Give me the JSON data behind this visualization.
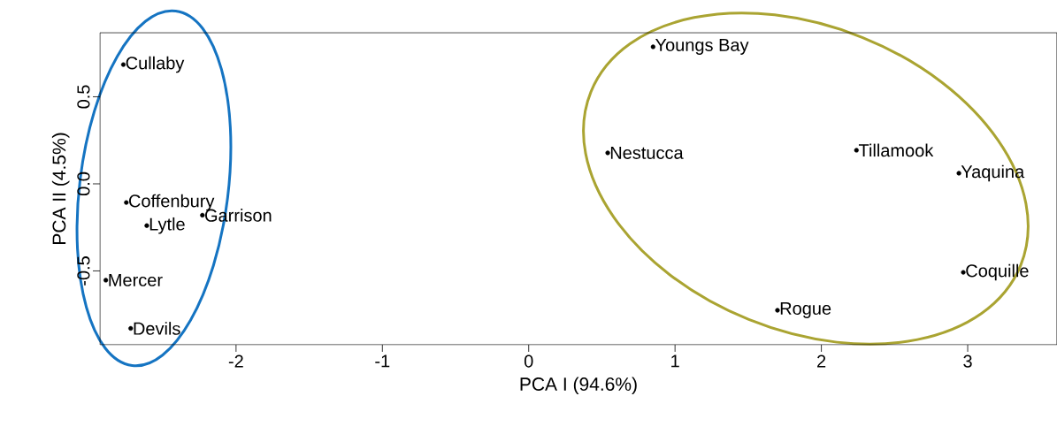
{
  "chart_data": {
    "type": "scatter",
    "xlabel": "PCA I (94.6%)",
    "ylabel": "PCA II (4.5%)",
    "x": [
      -2.77,
      -2.75,
      -2.61,
      -2.23,
      -2.89,
      -2.72,
      0.85,
      0.54,
      2.24,
      2.94,
      2.97,
      1.7
    ],
    "series": [
      {
        "color": "#000000",
        "values": [
          0.685,
          -0.107,
          -0.24,
          -0.18,
          -0.553,
          -0.83,
          0.787,
          0.178,
          0.193,
          0.061,
          -0.508,
          -0.726
        ]
      }
    ],
    "marker": "circle",
    "grid": false,
    "xlim": [
      -2.93,
      3.61
    ],
    "ylim": [
      -0.924,
      0.868
    ],
    "xticks": [
      -2,
      -1,
      0,
      1,
      2,
      3
    ],
    "yticks": [
      -0.5,
      {
        "value": 0,
        "label": "0.0"
      },
      0.5
    ],
    "annotations": [
      {
        "text": "Cullaby",
        "x": -2.77,
        "y": 0.685
      },
      {
        "text": "Coffenbury",
        "x": -2.75,
        "y": -0.107
      },
      {
        "text": "Lytle",
        "x": -2.61,
        "y": -0.24
      },
      {
        "text": "Garrison",
        "x": -2.23,
        "y": -0.18
      },
      {
        "text": "Mercer",
        "x": -2.89,
        "y": -0.553
      },
      {
        "text": "Devils",
        "x": -2.72,
        "y": -0.83
      },
      {
        "text": "Youngs Bay",
        "x": 0.85,
        "y": 0.787
      },
      {
        "text": "Nestucca",
        "x": 0.54,
        "y": 0.178
      },
      {
        "text": "Tillamook",
        "x": 2.24,
        "y": 0.193
      },
      {
        "text": "Yaquina",
        "x": 2.94,
        "y": 0.061
      },
      {
        "text": "Coquille",
        "x": 2.97,
        "y": -0.508
      },
      {
        "text": "Rogue",
        "x": 1.7,
        "y": -0.726
      }
    ]
  }
}
